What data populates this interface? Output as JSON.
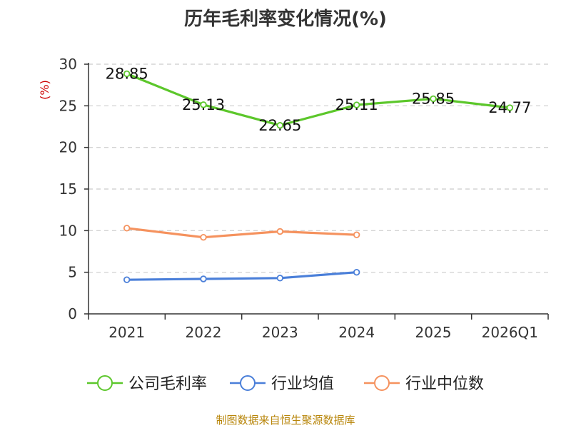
{
  "title": "历年毛利率变化情况(%)",
  "source_note": "制图数据来自恒生聚源数据库",
  "colors": {
    "company": "#5cc72b",
    "industry_avg": "#4a7fd9",
    "industry_median": "#f5925e",
    "axis": "#333333",
    "grid": "#cccccc",
    "unit": "#cc0000",
    "source": "#b8860b"
  },
  "chart_data": {
    "type": "line",
    "categories": [
      "2021",
      "2022",
      "2023",
      "2024",
      "2025",
      "2026Q1"
    ],
    "y_unit": "(%)",
    "ylim": [
      0,
      30
    ],
    "y_ticks": [
      0,
      5,
      10,
      15,
      20,
      25,
      30
    ],
    "grid": true,
    "legend_position": "bottom",
    "series": [
      {
        "name": "公司毛利率",
        "color": "#5cc72b",
        "values": [
          28.85,
          25.13,
          22.65,
          25.11,
          25.85,
          24.77
        ],
        "labels": [
          "28.85",
          "25.13",
          "22.65",
          "25.11",
          "25.85",
          "24.77"
        ],
        "show_labels": true
      },
      {
        "name": "行业均值",
        "color": "#4a7fd9",
        "values": [
          4.1,
          4.2,
          4.3,
          5.0,
          null,
          null
        ],
        "show_labels": false
      },
      {
        "name": "行业中位数",
        "color": "#f5925e",
        "values": [
          10.3,
          9.2,
          9.9,
          9.5,
          null,
          null
        ],
        "show_labels": false
      }
    ]
  }
}
